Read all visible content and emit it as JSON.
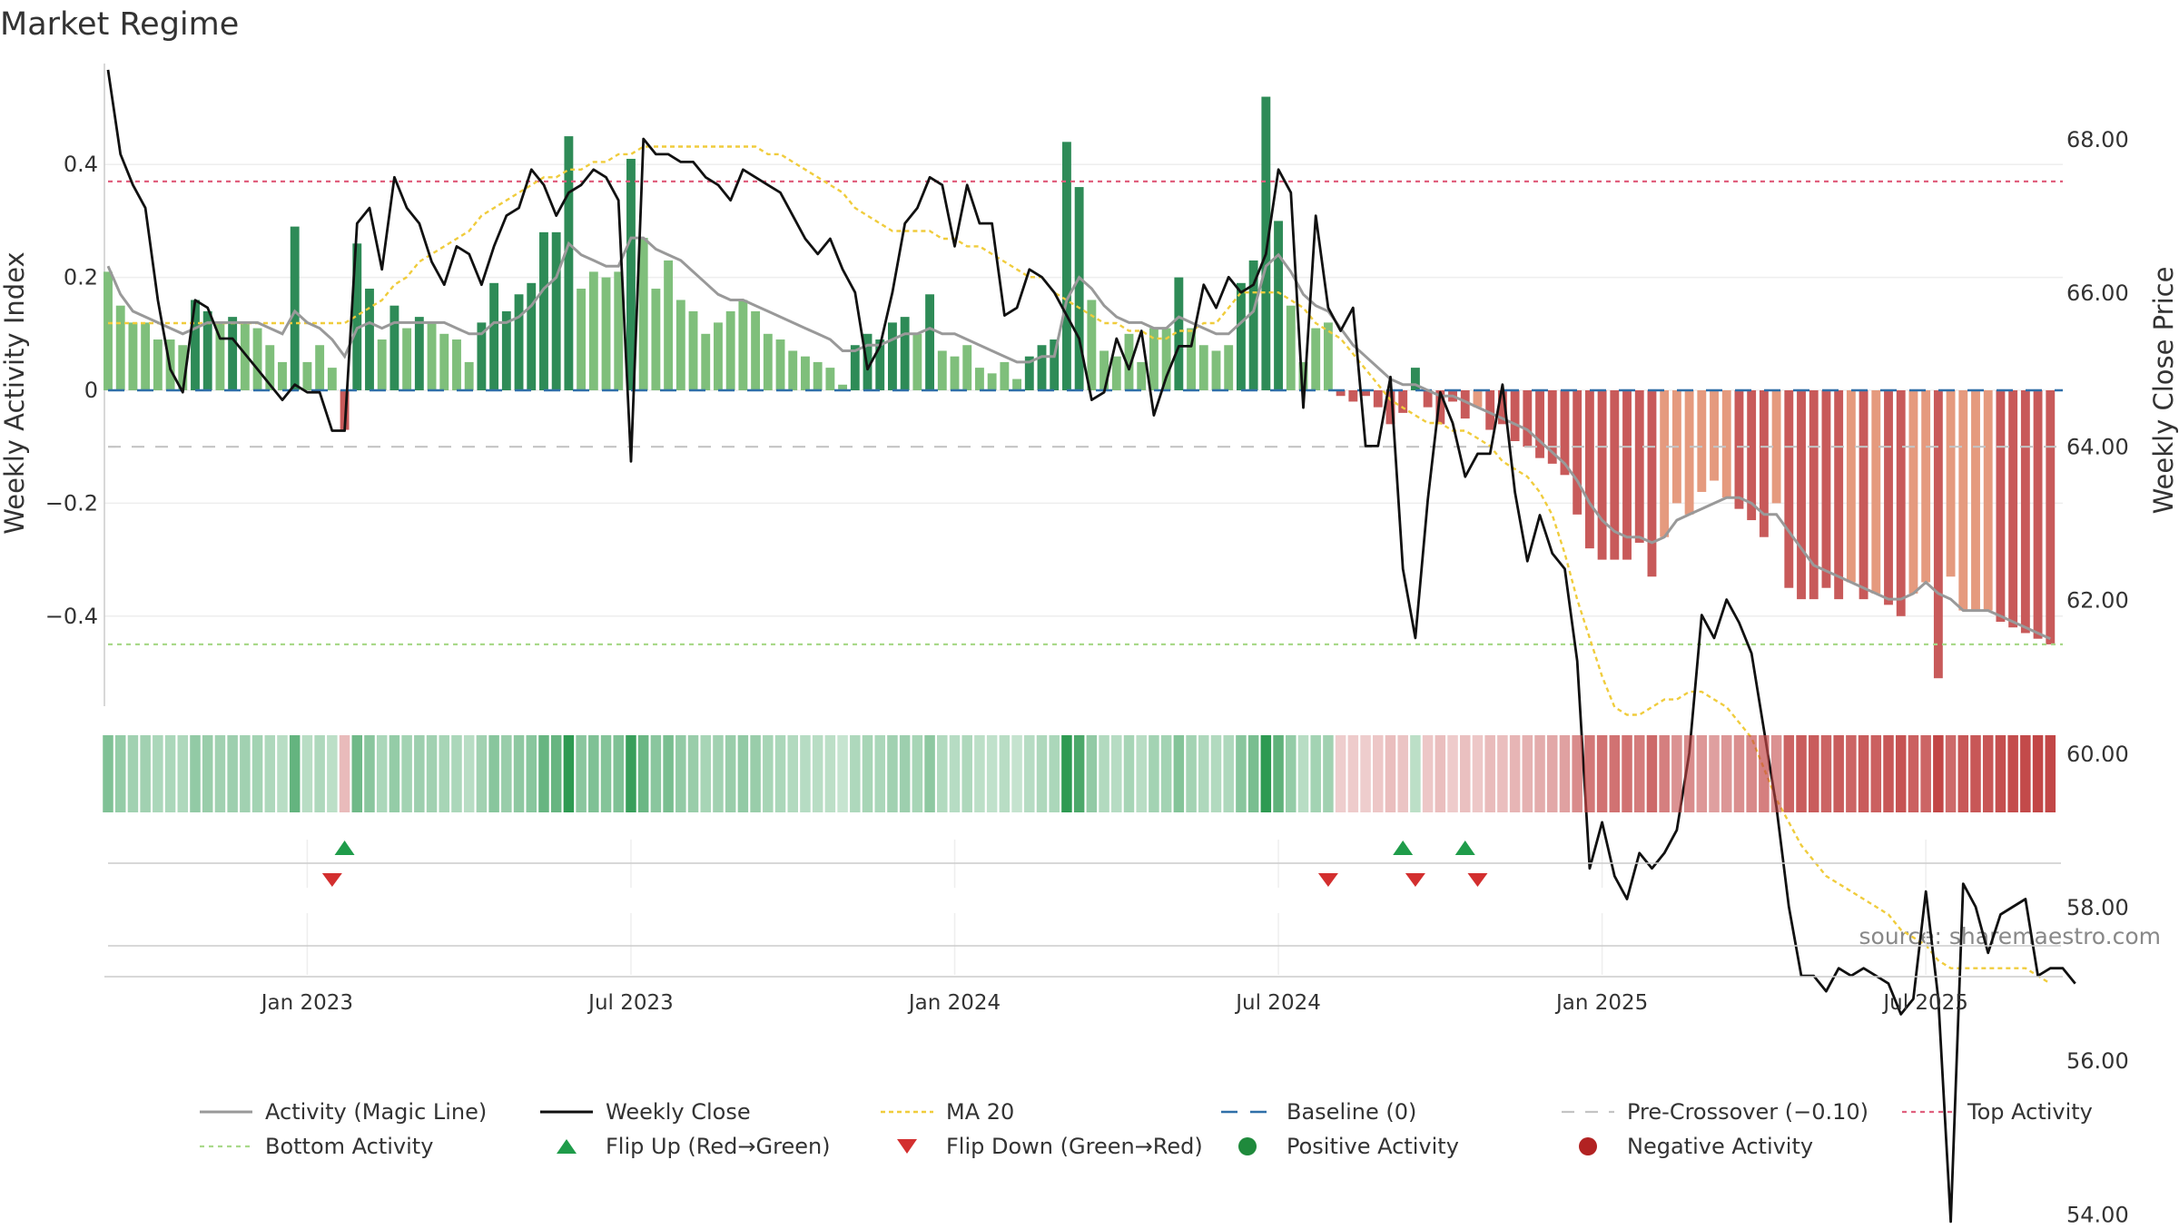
{
  "chart_data": {
    "type": "bar",
    "title": "Market Regime",
    "source": "source: sharemaestro.com",
    "ylabel_left": "Weekly Activity Index",
    "ylabel_right": "Weekly Close Price",
    "ylim_left": [
      -0.56,
      0.56
    ],
    "ylim_right": [
      53.0,
      69.5
    ],
    "left_ticks": [
      {
        "v": 0.4,
        "label": "0.4"
      },
      {
        "v": 0.2,
        "label": "0.2"
      },
      {
        "v": 0,
        "label": "0"
      },
      {
        "v": -0.2,
        "label": "−0.2"
      },
      {
        "v": -0.4,
        "label": "−0.4"
      }
    ],
    "right_ticks": [
      {
        "v": 68,
        "label": "68.00"
      },
      {
        "v": 66,
        "label": "66.00"
      },
      {
        "v": 64,
        "label": "64.00"
      },
      {
        "v": 62,
        "label": "62.00"
      },
      {
        "v": 60,
        "label": "60.00"
      },
      {
        "v": 58,
        "label": "58.00"
      },
      {
        "v": 56,
        "label": "56.00"
      },
      {
        "v": 54,
        "label": "54.00"
      }
    ],
    "x_ticks": [
      {
        "week": 16,
        "label": "Jan 2023"
      },
      {
        "week": 42,
        "label": "Jul 2023"
      },
      {
        "week": 68,
        "label": "Jan 2024"
      },
      {
        "week": 94,
        "label": "Jul 2024"
      },
      {
        "week": 120,
        "label": "Jan 2025"
      },
      {
        "week": 146,
        "label": "Jul 2025"
      }
    ],
    "weeks": 158,
    "activity": [
      0.21,
      0.15,
      0.12,
      0.12,
      0.09,
      0.09,
      0.08,
      0.16,
      0.14,
      0.12,
      0.13,
      0.12,
      0.11,
      0.08,
      0.05,
      0.29,
      0.05,
      0.08,
      0.04,
      -0.07,
      0.26,
      0.18,
      0.09,
      0.15,
      0.11,
      0.13,
      0.12,
      0.1,
      0.09,
      0.05,
      0.12,
      0.19,
      0.14,
      0.17,
      0.19,
      0.28,
      0.28,
      0.45,
      0.18,
      0.21,
      0.2,
      0.21,
      0.41,
      0.27,
      0.18,
      0.23,
      0.16,
      0.14,
      0.1,
      0.12,
      0.14,
      0.16,
      0.14,
      0.1,
      0.09,
      0.07,
      0.06,
      0.05,
      0.04,
      0.01,
      0.08,
      0.1,
      0.09,
      0.12,
      0.13,
      0.1,
      0.17,
      0.07,
      0.06,
      0.08,
      0.04,
      0.03,
      0.05,
      0.02,
      0.06,
      0.08,
      0.09,
      0.44,
      0.36,
      0.16,
      0.07,
      0.06,
      0.1,
      0.05,
      0.11,
      0.11,
      0.2,
      0.11,
      0.08,
      0.07,
      0.08,
      0.19,
      0.23,
      0.52,
      0.3,
      0.15,
      0.05,
      0.11,
      0.12,
      -0.01,
      -0.02,
      -0.01,
      -0.03,
      -0.06,
      -0.04,
      0.04,
      -0.03,
      -0.06,
      -0.02,
      -0.05,
      -0.03,
      -0.07,
      -0.06,
      -0.09,
      -0.1,
      -0.12,
      -0.13,
      -0.15,
      -0.22,
      -0.28,
      -0.3,
      -0.3,
      -0.3,
      -0.27,
      -0.33,
      -0.26,
      -0.2,
      -0.22,
      -0.18,
      -0.16,
      -0.19,
      -0.21,
      -0.23,
      -0.26,
      -0.2,
      -0.35,
      -0.37,
      -0.37,
      -0.35,
      -0.37,
      -0.34,
      -0.37,
      -0.36,
      -0.38,
      -0.4,
      -0.36,
      -0.34,
      -0.51,
      -0.33,
      -0.39,
      -0.39,
      -0.39,
      -0.41,
      -0.42,
      -0.43,
      -0.44,
      -0.45
    ],
    "activity_magic_line": [
      0.22,
      0.17,
      0.14,
      0.13,
      0.12,
      0.11,
      0.1,
      0.11,
      0.12,
      0.12,
      0.12,
      0.12,
      0.12,
      0.11,
      0.1,
      0.14,
      0.12,
      0.11,
      0.09,
      0.06,
      0.11,
      0.12,
      0.11,
      0.12,
      0.12,
      0.12,
      0.12,
      0.12,
      0.11,
      0.1,
      0.1,
      0.12,
      0.12,
      0.13,
      0.15,
      0.18,
      0.2,
      0.26,
      0.24,
      0.23,
      0.22,
      0.22,
      0.27,
      0.27,
      0.25,
      0.24,
      0.23,
      0.21,
      0.19,
      0.17,
      0.16,
      0.16,
      0.15,
      0.14,
      0.13,
      0.12,
      0.11,
      0.1,
      0.09,
      0.07,
      0.07,
      0.08,
      0.08,
      0.09,
      0.1,
      0.1,
      0.11,
      0.1,
      0.1,
      0.09,
      0.08,
      0.07,
      0.06,
      0.05,
      0.05,
      0.06,
      0.06,
      0.16,
      0.2,
      0.18,
      0.15,
      0.13,
      0.12,
      0.12,
      0.11,
      0.11,
      0.13,
      0.12,
      0.11,
      0.1,
      0.1,
      0.12,
      0.14,
      0.22,
      0.24,
      0.21,
      0.17,
      0.15,
      0.14,
      0.11,
      0.08,
      0.06,
      0.04,
      0.02,
      0.01,
      0.01,
      0.0,
      -0.01,
      -0.01,
      -0.02,
      -0.03,
      -0.04,
      -0.05,
      -0.06,
      -0.07,
      -0.09,
      -0.11,
      -0.13,
      -0.16,
      -0.2,
      -0.23,
      -0.25,
      -0.26,
      -0.26,
      -0.27,
      -0.26,
      -0.23,
      -0.22,
      -0.21,
      -0.2,
      -0.19,
      -0.19,
      -0.2,
      -0.22,
      -0.22,
      -0.25,
      -0.28,
      -0.31,
      -0.32,
      -0.33,
      -0.34,
      -0.35,
      -0.36,
      -0.37,
      -0.37,
      -0.36,
      -0.34,
      -0.36,
      -0.37,
      -0.39,
      -0.39,
      -0.39,
      -0.4,
      -0.41,
      -0.42,
      -0.43,
      -0.44
    ],
    "weekly_close": [
      68.9,
      67.8,
      67.4,
      67.1,
      65.9,
      65.0,
      64.7,
      65.9,
      65.8,
      65.4,
      65.4,
      65.2,
      65.0,
      64.8,
      64.6,
      64.8,
      64.7,
      64.7,
      64.2,
      64.2,
      66.9,
      67.1,
      66.3,
      67.5,
      67.1,
      66.9,
      66.4,
      66.1,
      66.6,
      66.5,
      66.1,
      66.6,
      67.0,
      67.1,
      67.6,
      67.4,
      67.0,
      67.3,
      67.4,
      67.6,
      67.5,
      67.2,
      63.8,
      68.0,
      67.8,
      67.8,
      67.7,
      67.7,
      67.5,
      67.4,
      67.2,
      67.6,
      67.5,
      67.4,
      67.3,
      67.0,
      66.7,
      66.5,
      66.7,
      66.3,
      66.0,
      65.0,
      65.3,
      66.0,
      66.9,
      67.1,
      67.5,
      67.4,
      66.6,
      67.4,
      66.9,
      66.9,
      65.7,
      65.8,
      66.3,
      66.2,
      66.0,
      65.7,
      65.4,
      64.6,
      64.7,
      65.4,
      65.0,
      65.5,
      64.4,
      64.9,
      65.3,
      65.3,
      66.1,
      65.8,
      66.2,
      66.0,
      66.1,
      66.5,
      67.6,
      67.3,
      64.5,
      67.0,
      65.8,
      65.5,
      65.8,
      64.0,
      64.0,
      64.9,
      62.4,
      61.5,
      63.3,
      64.7,
      64.3,
      63.6,
      63.9,
      63.9,
      64.8,
      63.4,
      62.5,
      63.1,
      62.6,
      62.4,
      61.2,
      58.5,
      59.1,
      58.4,
      58.1,
      58.7,
      58.5,
      58.7,
      59.0,
      60.0,
      61.8,
      61.5,
      62.0,
      61.7,
      61.3,
      60.3,
      59.3,
      58.0,
      57.1,
      57.1,
      56.9,
      57.2,
      57.1,
      57.2,
      57.1,
      57.0,
      56.6,
      56.8,
      58.2,
      56.8,
      53.9,
      58.3,
      58.0,
      57.4,
      57.9,
      58.0,
      58.1,
      57.1,
      57.2,
      57.2,
      57.0
    ],
    "ma20": [
      65.6,
      65.6,
      65.6,
      65.6,
      65.6,
      65.6,
      65.6,
      65.6,
      65.6,
      65.6,
      65.6,
      65.6,
      65.6,
      65.6,
      65.6,
      65.6,
      65.6,
      65.6,
      65.6,
      65.6,
      65.7,
      65.8,
      65.9,
      66.1,
      66.2,
      66.4,
      66.5,
      66.6,
      66.7,
      66.8,
      67.0,
      67.1,
      67.2,
      67.3,
      67.4,
      67.5,
      67.5,
      67.6,
      67.6,
      67.7,
      67.7,
      67.8,
      67.8,
      67.9,
      67.9,
      67.9,
      67.9,
      67.9,
      67.9,
      67.9,
      67.9,
      67.9,
      67.9,
      67.8,
      67.8,
      67.7,
      67.6,
      67.5,
      67.4,
      67.3,
      67.1,
      67.0,
      66.9,
      66.8,
      66.8,
      66.8,
      66.8,
      66.7,
      66.7,
      66.6,
      66.6,
      66.5,
      66.4,
      66.3,
      66.2,
      66.2,
      66.0,
      65.9,
      65.8,
      65.7,
      65.6,
      65.6,
      65.5,
      65.5,
      65.4,
      65.4,
      65.5,
      65.5,
      65.6,
      65.6,
      65.8,
      66.0,
      66.0,
      66.0,
      66.0,
      65.9,
      65.8,
      65.6,
      65.5,
      65.4,
      65.2,
      65.0,
      64.8,
      64.6,
      64.5,
      64.4,
      64.3,
      64.3,
      64.2,
      64.2,
      64.1,
      64.0,
      63.8,
      63.7,
      63.6,
      63.4,
      63.1,
      62.6,
      62.0,
      61.5,
      61.0,
      60.6,
      60.5,
      60.5,
      60.6,
      60.7,
      60.7,
      60.8,
      60.8,
      60.7,
      60.6,
      60.4,
      60.2,
      59.8,
      59.4,
      59.1,
      58.8,
      58.6,
      58.4,
      58.3,
      58.2,
      58.1,
      58.0,
      57.9,
      57.7,
      57.6,
      57.5,
      57.3,
      57.2,
      57.2,
      57.2,
      57.2,
      57.2,
      57.2,
      57.2,
      57.1,
      57.0
    ],
    "reference_lines": {
      "baseline": 0,
      "pre_crossover": -0.1,
      "top_activity": 0.37,
      "bottom_activity": -0.45
    },
    "flip_up_weeks": [
      19,
      104,
      109
    ],
    "flip_down_weeks": [
      18,
      98,
      105,
      110
    ],
    "colors": {
      "green_dark": "#2e8b57",
      "green_light": "#7fbf7b",
      "red_dark": "#c85a5a",
      "red_light": "#e59a7e",
      "magic_line": "#999999",
      "weekly_close": "#111111",
      "ma20": "#f0cc3c",
      "baseline": "#2f6fa8",
      "pre_crossover": "#c4c4c4",
      "top_activity": "#e0607e",
      "bottom_activity": "#a9d98a",
      "flip_up": "#1f9c4a",
      "flip_down": "#d32f2f",
      "positive_activity": "#1f8a3c",
      "negative_activity": "#b22222"
    },
    "legend": [
      {
        "key": "magic",
        "label": "Activity (Magic Line)"
      },
      {
        "key": "close",
        "label": "Weekly Close"
      },
      {
        "key": "ma",
        "label": "MA 20"
      },
      {
        "key": "baseline",
        "label": "Baseline (0)"
      },
      {
        "key": "precross",
        "label": "Pre-Crossover (−0.10)"
      },
      {
        "key": "top",
        "label": "Top Activity"
      },
      {
        "key": "bottom",
        "label": "Bottom Activity"
      },
      {
        "key": "flipup",
        "label": "Flip Up (Red→Green)"
      },
      {
        "key": "flipdown",
        "label": "Flip Down (Green→Red)"
      },
      {
        "key": "pos",
        "label": "Positive Activity"
      },
      {
        "key": "neg",
        "label": "Negative Activity"
      }
    ],
    "legend_placement": "bottom",
    "grid": true
  }
}
